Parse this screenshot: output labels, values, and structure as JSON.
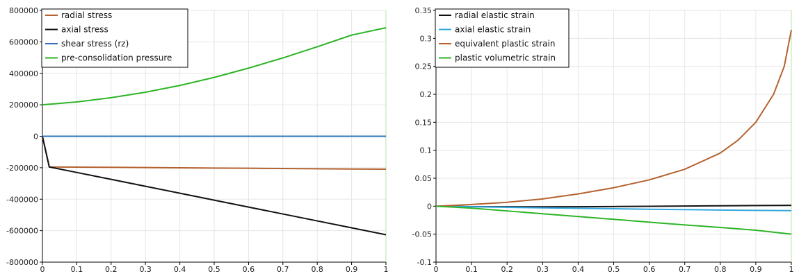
{
  "chart_data": [
    {
      "type": "line",
      "x_ticks": [
        "0",
        "0.1",
        "0.2",
        "0.3",
        "0.4",
        "0.5",
        "0.6",
        "0.7",
        "0.8",
        "0.9",
        "1"
      ],
      "y_ticks": [
        "800000",
        "600000",
        "400000",
        "200000",
        "0",
        "-200000",
        "-400000",
        "-600000",
        "-800000"
      ],
      "xlim": [
        0,
        1
      ],
      "ylim": [
        -800000,
        800000
      ],
      "grid": true,
      "legend_position": "top-left",
      "series": [
        {
          "name": "radial stress",
          "color": "#b5622f",
          "x": [
            0,
            0.02,
            0.1,
            0.2,
            0.3,
            0.4,
            0.5,
            0.6,
            0.7,
            0.8,
            0.9,
            1.0
          ],
          "y": [
            0,
            -195000,
            -196000,
            -197500,
            -199000,
            -200500,
            -202000,
            -203500,
            -205000,
            -206500,
            -208000,
            -209500
          ]
        },
        {
          "name": "axial stress",
          "color": "#111111",
          "x": [
            0,
            0.02,
            0.1,
            0.2,
            0.3,
            0.4,
            0.5,
            0.6,
            0.7,
            0.8,
            0.9,
            1.0
          ],
          "y": [
            0,
            -195000,
            -230000,
            -274000,
            -318000,
            -362000,
            -406000,
            -450000,
            -494000,
            -538000,
            -582000,
            -626000
          ]
        },
        {
          "name": "shear stress (rz)",
          "color": "#3173b8",
          "x": [
            0,
            0.1,
            0.2,
            0.3,
            0.4,
            0.5,
            0.6,
            0.7,
            0.8,
            0.9,
            1.0
          ],
          "y": [
            0,
            0,
            0,
            0,
            0,
            0,
            0,
            0,
            0,
            0,
            0
          ]
        },
        {
          "name": "pre-consolidation pressure",
          "color": "#2db526",
          "x": [
            0,
            0.1,
            0.2,
            0.3,
            0.4,
            0.5,
            0.6,
            0.7,
            0.8,
            0.9,
            1.0
          ],
          "y": [
            200000,
            218000,
            245000,
            280000,
            323000,
            374000,
            433000,
            498000,
            569000,
            643000,
            690000
          ]
        }
      ]
    },
    {
      "type": "line",
      "x_ticks": [
        "0",
        "0.1",
        "0.2",
        "0.3",
        "0.4",
        "0.5",
        "0.6",
        "0.7",
        "0.8",
        "0.9",
        "1"
      ],
      "y_ticks": [
        "0.35",
        "0.3",
        "0.25",
        "0.2",
        "0.15",
        "0.1",
        "0.05",
        "0",
        "-0.05",
        "-0.1"
      ],
      "xlim": [
        0,
        1
      ],
      "ylim": [
        -0.1,
        0.35
      ],
      "grid": true,
      "legend_position": "top-left",
      "series": [
        {
          "name": "radial elastic strain",
          "color": "#111111",
          "x": [
            0,
            0.1,
            0.2,
            0.3,
            0.4,
            0.5,
            0.6,
            0.7,
            0.8,
            0.9,
            1.0
          ],
          "y": [
            0,
            -0.0008,
            -0.0012,
            -0.0012,
            -0.001,
            -0.0006,
            -0.0002,
            0.0003,
            0.0008,
            0.0012,
            0.0015
          ]
        },
        {
          "name": "axial elastic strain",
          "color": "#33a8e0",
          "x": [
            0,
            0.1,
            0.2,
            0.3,
            0.4,
            0.5,
            0.6,
            0.7,
            0.8,
            0.9,
            1.0
          ],
          "y": [
            0,
            -0.001,
            -0.002,
            -0.003,
            -0.0038,
            -0.0046,
            -0.0054,
            -0.0061,
            -0.0068,
            -0.0075,
            -0.008
          ]
        },
        {
          "name": "equivalent plastic strain",
          "color": "#b5622f",
          "x": [
            0,
            0.1,
            0.2,
            0.3,
            0.4,
            0.5,
            0.6,
            0.7,
            0.8,
            0.85,
            0.9,
            0.95,
            0.98,
            1.0
          ],
          "y": [
            0,
            0.003,
            0.007,
            0.013,
            0.022,
            0.033,
            0.047,
            0.066,
            0.095,
            0.118,
            0.15,
            0.2,
            0.25,
            0.315
          ]
        },
        {
          "name": "plastic volumetric strain",
          "color": "#2db526",
          "x": [
            0,
            0.1,
            0.2,
            0.3,
            0.4,
            0.5,
            0.6,
            0.7,
            0.8,
            0.9,
            1.0
          ],
          "y": [
            0,
            -0.0035,
            -0.0085,
            -0.0135,
            -0.0185,
            -0.0235,
            -0.0285,
            -0.0335,
            -0.038,
            -0.043,
            -0.05
          ]
        }
      ]
    }
  ]
}
